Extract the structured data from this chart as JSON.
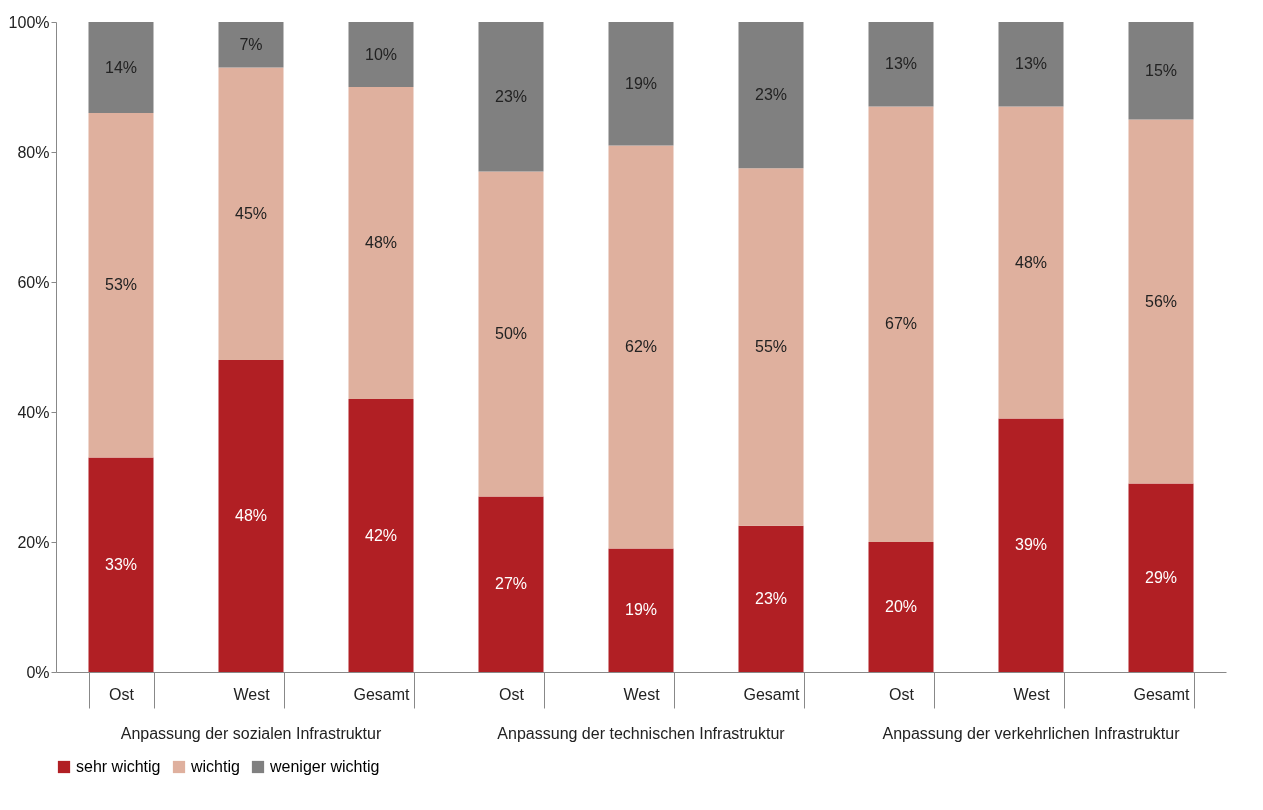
{
  "chart_data": {
    "type": "bar",
    "stacked": true,
    "categories": [
      "Ost",
      "West",
      "Gesamt",
      "Ost",
      "West",
      "Gesamt",
      "Ost",
      "West",
      "Gesamt"
    ],
    "series": [
      {
        "name": "sehr wichtig",
        "color": "#b11f24",
        "values": [
          33,
          48,
          42,
          27,
          19,
          22.5,
          20,
          39,
          29
        ],
        "value_labels": [
          "33%",
          "48%",
          "42%",
          "27%",
          "19%",
          "23%",
          "20%",
          "39%",
          "29%"
        ]
      },
      {
        "name": "wichtig",
        "color": "#dfb09e",
        "values": [
          53,
          45,
          48,
          50,
          62,
          55,
          67,
          48,
          56
        ],
        "value_labels": [
          "53%",
          "45%",
          "48%",
          "50%",
          "62%",
          "55%",
          "67%",
          "48%",
          "56%"
        ]
      },
      {
        "name": "weniger wichtig",
        "color": "#808080",
        "values": [
          14,
          7,
          10,
          23,
          19,
          22.5,
          13,
          13,
          15
        ],
        "value_labels": [
          "14%",
          "7%",
          "10%",
          "23%",
          "19%",
          "23%",
          "13%",
          "13%",
          "15%"
        ]
      }
    ],
    "ylim": [
      0,
      100
    ],
    "yticks": [
      {
        "value": 0,
        "label": "0%"
      },
      {
        "value": 20,
        "label": "20%"
      },
      {
        "value": 40,
        "label": "40%"
      },
      {
        "value": 60,
        "label": "60%"
      },
      {
        "value": 80,
        "label": "80%"
      },
      {
        "value": 100,
        "label": "100%"
      }
    ],
    "annotations": [
      "Anpassung der sozialen Infrastruktur",
      "Anpassung der technischen Infrastruktur",
      "Anpassung der verkehrlichen Infrastruktur"
    ],
    "grid": false,
    "legend": "bottom"
  }
}
